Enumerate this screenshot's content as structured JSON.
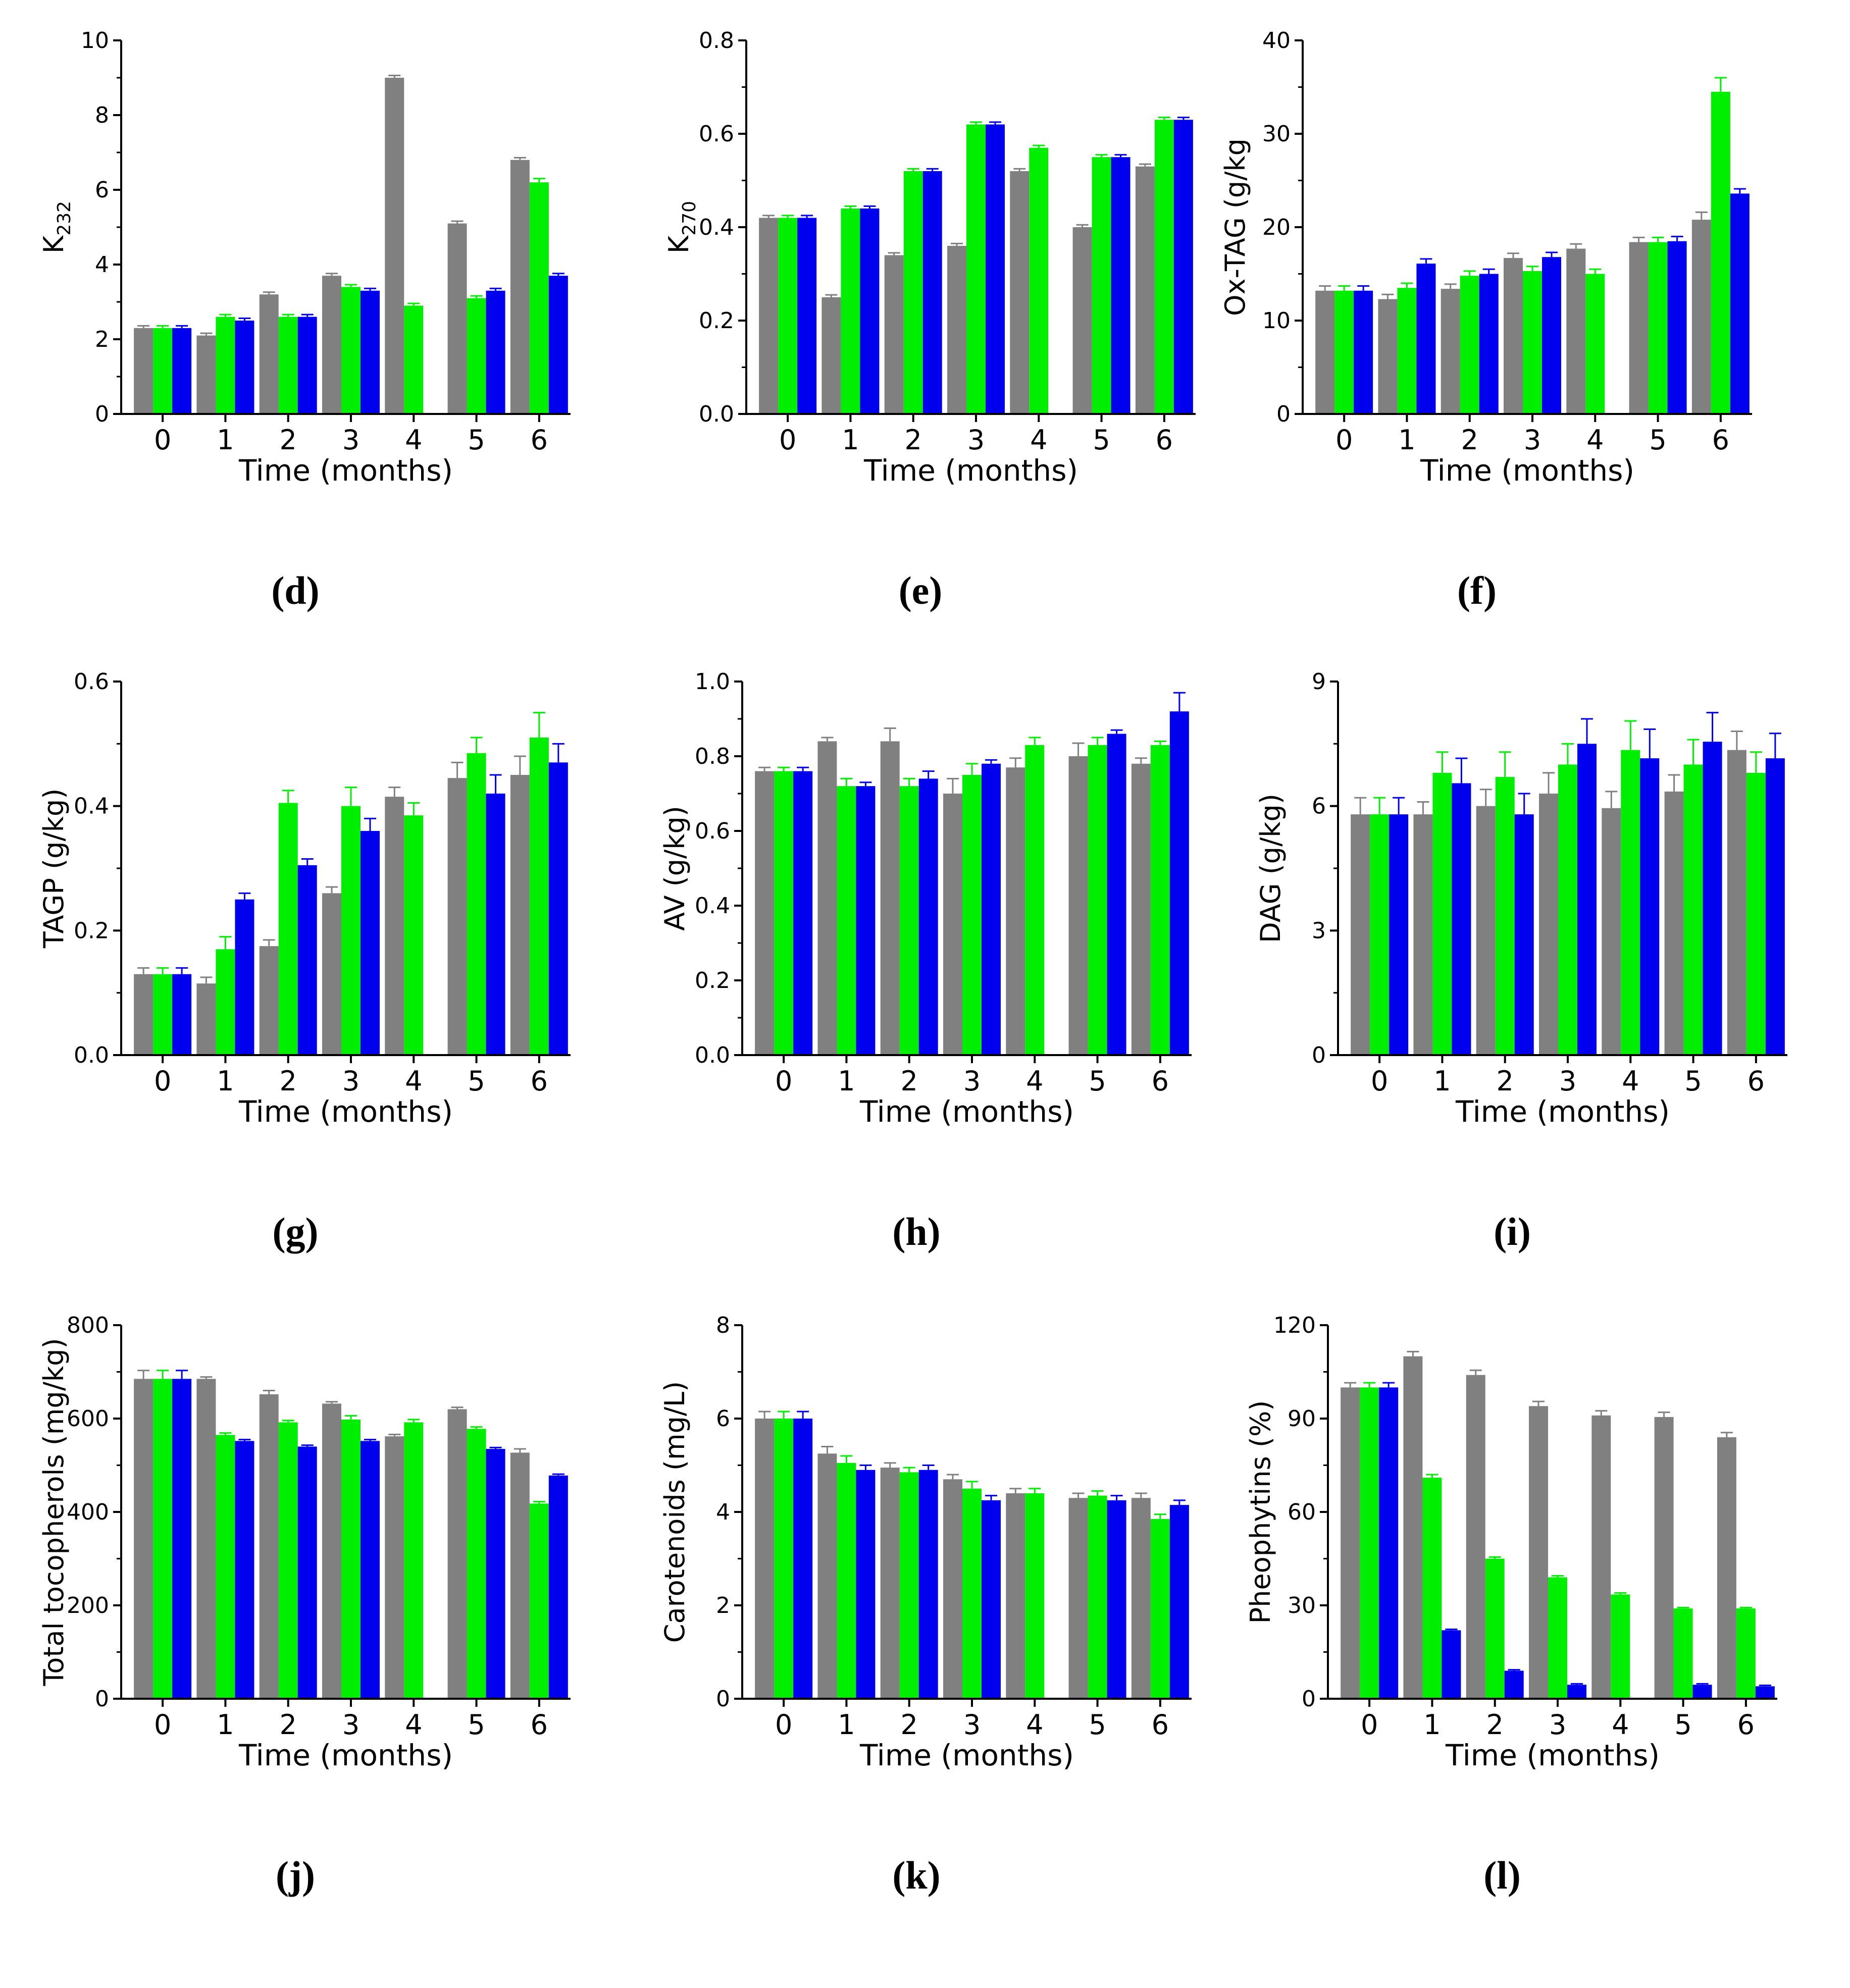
{
  "colors": {
    "gray": "#808080",
    "green": "#00ee00",
    "blue": "#0000ee",
    "axis": "#000000"
  },
  "chart_data": [
    {
      "id": "K232",
      "type": "bar",
      "caption": "(d)",
      "title": "",
      "ylabel": "K",
      "ylabel_sub": "232",
      "xlabel": "Time (months)",
      "categories": [
        "0",
        "1",
        "2",
        "3",
        "4",
        "5",
        "6"
      ],
      "ylim": [
        0,
        10
      ],
      "yticks": [
        "0",
        "2",
        "4",
        "6",
        "8",
        "10"
      ],
      "ytick_values": [
        0,
        2,
        4,
        6,
        8,
        10
      ],
      "series": [
        {
          "color": "gray",
          "values": [
            2.3,
            2.1,
            3.2,
            3.7,
            9.0,
            5.1,
            6.8
          ],
          "errors": [
            0.06,
            0.06,
            0.06,
            0.06,
            0.06,
            0.06,
            0.06
          ]
        },
        {
          "color": "green",
          "values": [
            2.3,
            2.6,
            2.6,
            3.4,
            2.9,
            3.1,
            6.2
          ],
          "errors": [
            0.06,
            0.06,
            0.06,
            0.06,
            0.06,
            0.06,
            0.1
          ]
        },
        {
          "color": "blue",
          "values": [
            2.3,
            2.5,
            2.6,
            3.3,
            null,
            3.3,
            3.7
          ],
          "errors": [
            0.06,
            0.06,
            0.06,
            0.06,
            null,
            0.06,
            0.06
          ]
        }
      ]
    },
    {
      "id": "K270",
      "type": "bar",
      "caption": "(e)",
      "title": "",
      "ylabel": "K",
      "ylabel_sub": "270",
      "xlabel": "Time (months)",
      "categories": [
        "0",
        "1",
        "2",
        "3",
        "4",
        "5",
        "6"
      ],
      "ylim": [
        0,
        0.8
      ],
      "yticks": [
        "0.0",
        "0.2",
        "0.4",
        "0.6",
        "0.8"
      ],
      "ytick_values": [
        0,
        0.2,
        0.4,
        0.6,
        0.8
      ],
      "series": [
        {
          "color": "gray",
          "values": [
            0.42,
            0.25,
            0.34,
            0.36,
            0.52,
            0.4,
            0.53
          ],
          "errors": [
            0.005,
            0.005,
            0.005,
            0.005,
            0.005,
            0.005,
            0.005
          ]
        },
        {
          "color": "green",
          "values": [
            0.42,
            0.44,
            0.52,
            0.62,
            0.57,
            0.55,
            0.63
          ],
          "errors": [
            0.005,
            0.005,
            0.005,
            0.005,
            0.005,
            0.005,
            0.005
          ]
        },
        {
          "color": "blue",
          "values": [
            0.42,
            0.44,
            0.52,
            0.62,
            null,
            0.55,
            0.63
          ],
          "errors": [
            0.005,
            0.005,
            0.005,
            0.005,
            null,
            0.005,
            0.005
          ]
        }
      ]
    },
    {
      "id": "OxTAG",
      "type": "bar",
      "caption": "(f)",
      "title": "",
      "ylabel": "Ox-TAG (g/kg",
      "ylabel_sub": "",
      "xlabel": "Time (months)",
      "categories": [
        "0",
        "1",
        "2",
        "3",
        "4",
        "5",
        "6"
      ],
      "ylim": [
        0,
        40
      ],
      "yticks": [
        "0",
        "10",
        "20",
        "30",
        "40"
      ],
      "ytick_values": [
        0,
        10,
        20,
        30,
        40
      ],
      "series": [
        {
          "color": "gray",
          "values": [
            13.2,
            12.3,
            13.4,
            16.7,
            17.7,
            18.4,
            20.8
          ],
          "errors": [
            0.5,
            0.5,
            0.5,
            0.5,
            0.5,
            0.5,
            0.8
          ]
        },
        {
          "color": "green",
          "values": [
            13.2,
            13.5,
            14.8,
            15.3,
            15.0,
            18.4,
            34.5
          ],
          "errors": [
            0.5,
            0.5,
            0.5,
            0.5,
            0.5,
            0.5,
            1.5
          ]
        },
        {
          "color": "blue",
          "values": [
            13.2,
            16.1,
            15.0,
            16.8,
            null,
            18.5,
            23.6
          ],
          "errors": [
            0.5,
            0.5,
            0.5,
            0.5,
            null,
            0.5,
            0.5
          ]
        }
      ]
    },
    {
      "id": "TAGP",
      "type": "bar",
      "caption": "(g)",
      "title": "",
      "ylabel": "TAGP (g/kg)",
      "ylabel_sub": "",
      "xlabel": "Time (months)",
      "categories": [
        "0",
        "1",
        "2",
        "3",
        "4",
        "5",
        "6"
      ],
      "ylim": [
        0,
        0.6
      ],
      "yticks": [
        "0.0",
        "0.2",
        "0.4",
        "0.6"
      ],
      "ytick_values": [
        0,
        0.2,
        0.4,
        0.6
      ],
      "series": [
        {
          "color": "gray",
          "values": [
            0.13,
            0.115,
            0.175,
            0.26,
            0.415,
            0.445,
            0.45
          ],
          "errors": [
            0.01,
            0.01,
            0.01,
            0.01,
            0.015,
            0.025,
            0.03
          ]
        },
        {
          "color": "green",
          "values": [
            0.13,
            0.17,
            0.405,
            0.4,
            0.385,
            0.485,
            0.51
          ],
          "errors": [
            0.01,
            0.02,
            0.02,
            0.03,
            0.02,
            0.025,
            0.04
          ]
        },
        {
          "color": "blue",
          "values": [
            0.13,
            0.25,
            0.305,
            0.36,
            null,
            0.42,
            0.47
          ],
          "errors": [
            0.01,
            0.01,
            0.01,
            0.02,
            null,
            0.03,
            0.03
          ]
        }
      ]
    },
    {
      "id": "AV",
      "type": "bar",
      "caption": "(h)",
      "title": "",
      "ylabel": "AV (g/kg)",
      "ylabel_sub": "",
      "xlabel": "Time (months)",
      "categories": [
        "0",
        "1",
        "2",
        "3",
        "4",
        "5",
        "6"
      ],
      "ylim": [
        0,
        1.0
      ],
      "yticks": [
        "0.0",
        "0.2",
        "0.4",
        "0.6",
        "0.8",
        "1.0"
      ],
      "ytick_values": [
        0,
        0.2,
        0.4,
        0.6,
        0.8,
        1.0
      ],
      "series": [
        {
          "color": "gray",
          "values": [
            0.76,
            0.84,
            0.84,
            0.7,
            0.77,
            0.8,
            0.78
          ],
          "errors": [
            0.01,
            0.01,
            0.035,
            0.04,
            0.025,
            0.035,
            0.015
          ]
        },
        {
          "color": "green",
          "values": [
            0.76,
            0.72,
            0.72,
            0.75,
            0.83,
            0.83,
            0.83
          ],
          "errors": [
            0.01,
            0.02,
            0.02,
            0.03,
            0.02,
            0.02,
            0.01
          ]
        },
        {
          "color": "blue",
          "values": [
            0.76,
            0.72,
            0.74,
            0.78,
            null,
            0.86,
            0.92
          ],
          "errors": [
            0.01,
            0.01,
            0.02,
            0.01,
            null,
            0.01,
            0.05
          ]
        }
      ]
    },
    {
      "id": "DAG",
      "type": "bar",
      "caption": "(i)",
      "title": "",
      "ylabel": "DAG (g/kg)",
      "ylabel_sub": "",
      "xlabel": "Time (months)",
      "categories": [
        "0",
        "1",
        "2",
        "3",
        "4",
        "5",
        "6"
      ],
      "ylim": [
        0,
        9
      ],
      "yticks": [
        "0",
        "3",
        "6",
        "9"
      ],
      "ytick_values": [
        0,
        3,
        6,
        9
      ],
      "series": [
        {
          "color": "gray",
          "values": [
            5.8,
            5.8,
            6.0,
            6.3,
            5.95,
            6.35,
            7.35
          ],
          "errors": [
            0.4,
            0.3,
            0.4,
            0.5,
            0.4,
            0.4,
            0.45
          ]
        },
        {
          "color": "green",
          "values": [
            5.8,
            6.8,
            6.7,
            7.0,
            7.35,
            7.0,
            6.8
          ],
          "errors": [
            0.4,
            0.5,
            0.6,
            0.5,
            0.7,
            0.6,
            0.5
          ]
        },
        {
          "color": "blue",
          "values": [
            5.8,
            6.55,
            5.8,
            7.5,
            7.15,
            7.55,
            7.15
          ],
          "errors": [
            0.4,
            0.6,
            0.5,
            0.6,
            0.7,
            0.7,
            0.6
          ]
        }
      ]
    },
    {
      "id": "Tocopherols",
      "type": "bar",
      "caption": "(j)",
      "title": "",
      "ylabel": "Total tocopherols (mg/kg)",
      "ylabel_sub": "",
      "xlabel": "Time (months)",
      "categories": [
        "0",
        "1",
        "2",
        "3",
        "4",
        "5",
        "6"
      ],
      "ylim": [
        0,
        800
      ],
      "yticks": [
        "0",
        "200",
        "400",
        "600",
        "800"
      ],
      "ytick_values": [
        0,
        200,
        400,
        600,
        800
      ],
      "series": [
        {
          "color": "gray",
          "values": [
            685,
            685,
            652,
            632,
            562,
            620,
            527
          ],
          "errors": [
            18,
            4,
            8,
            4,
            4,
            4,
            8
          ]
        },
        {
          "color": "green",
          "values": [
            685,
            565,
            592,
            598,
            592,
            578,
            418
          ],
          "errors": [
            18,
            4,
            4,
            8,
            6,
            4,
            4
          ]
        },
        {
          "color": "blue",
          "values": [
            685,
            552,
            540,
            552,
            null,
            535,
            478
          ],
          "errors": [
            18,
            3,
            3,
            3,
            null,
            3,
            3
          ]
        }
      ]
    },
    {
      "id": "Carotenoids",
      "type": "bar",
      "caption": "(k)",
      "title": "",
      "ylabel": "Carotenoids (mg/L)",
      "ylabel_sub": "",
      "xlabel": "Time (months)",
      "categories": [
        "0",
        "1",
        "2",
        "3",
        "4",
        "5",
        "6"
      ],
      "ylim": [
        0,
        8
      ],
      "yticks": [
        "0",
        "2",
        "4",
        "6",
        "8"
      ],
      "ytick_values": [
        0,
        2,
        4,
        6,
        8
      ],
      "series": [
        {
          "color": "gray",
          "values": [
            6.0,
            5.25,
            4.95,
            4.7,
            4.4,
            4.3,
            4.3
          ],
          "errors": [
            0.15,
            0.15,
            0.1,
            0.1,
            0.1,
            0.1,
            0.1
          ]
        },
        {
          "color": "green",
          "values": [
            6.0,
            5.05,
            4.85,
            4.5,
            4.4,
            4.35,
            3.85
          ],
          "errors": [
            0.15,
            0.15,
            0.1,
            0.15,
            0.1,
            0.1,
            0.1
          ]
        },
        {
          "color": "blue",
          "values": [
            6.0,
            4.9,
            4.9,
            4.25,
            null,
            4.25,
            4.15
          ],
          "errors": [
            0.15,
            0.1,
            0.1,
            0.1,
            null,
            0.1,
            0.1
          ]
        }
      ]
    },
    {
      "id": "Pheophytins",
      "type": "bar",
      "caption": "(l)",
      "title": "",
      "ylabel": "Pheophytins (%)",
      "ylabel_sub": "",
      "xlabel": "Time (months)",
      "categories": [
        "0",
        "1",
        "2",
        "3",
        "4",
        "5",
        "6"
      ],
      "ylim": [
        0,
        120
      ],
      "yticks": [
        "0",
        "30",
        "60",
        "90",
        "120"
      ],
      "ytick_values": [
        0,
        30,
        60,
        90,
        120
      ],
      "series": [
        {
          "color": "gray",
          "values": [
            100,
            110,
            104,
            94,
            91,
            90.5,
            84
          ],
          "errors": [
            1.5,
            1.5,
            1.5,
            1.5,
            1.5,
            1.5,
            1.5
          ]
        },
        {
          "color": "green",
          "values": [
            100,
            71,
            45,
            39,
            33.5,
            29,
            29
          ],
          "errors": [
            1.5,
            1,
            0.5,
            0.5,
            0.5,
            0.3,
            0.3
          ]
        },
        {
          "color": "blue",
          "values": [
            100,
            22,
            9,
            4.5,
            null,
            4.5,
            4
          ],
          "errors": [
            1.5,
            0.3,
            0.3,
            0.3,
            null,
            0.3,
            0.3
          ]
        }
      ]
    }
  ]
}
